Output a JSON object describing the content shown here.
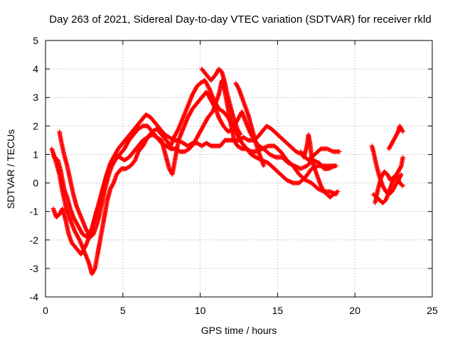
{
  "chart_data": {
    "type": "scatter",
    "title": "Day 263 of 2021, Sidereal Day-to-day VTEC variation (SDTVAR) for receiver rkld",
    "xlabel": "GPS time / hours",
    "ylabel": "SDTVAR / TECUs",
    "xlim": [
      0,
      25
    ],
    "ylim": [
      -4,
      5
    ],
    "xticks": [
      "0",
      "5",
      "10",
      "15",
      "20",
      "25"
    ],
    "yticks": [
      "-4",
      "-3",
      "-2",
      "-1",
      "0",
      "1",
      "2",
      "3",
      "4",
      "5"
    ],
    "grid": true,
    "marker": "+",
    "color": "#ff0000",
    "tracks": [
      [
        [
          0.5,
          1.0
        ],
        [
          0.7,
          0.7
        ],
        [
          0.9,
          0.3
        ],
        [
          1.1,
          -0.3
        ],
        [
          1.3,
          -0.8
        ],
        [
          1.6,
          -1.3
        ],
        [
          1.9,
          -1.7
        ],
        [
          2.2,
          -2.0
        ],
        [
          2.5,
          -2.4
        ],
        [
          2.8,
          -2.8
        ],
        [
          3.0,
          -3.2
        ],
        [
          3.2,
          -3.0
        ],
        [
          3.4,
          -2.4
        ],
        [
          3.6,
          -1.8
        ],
        [
          3.8,
          -1.2
        ],
        [
          4.0,
          -0.6
        ],
        [
          4.2,
          -0.2
        ],
        [
          4.4,
          0.0
        ],
        [
          4.6,
          0.3
        ],
        [
          4.9,
          0.5
        ],
        [
          5.2,
          0.5
        ],
        [
          5.5,
          0.6
        ],
        [
          5.8,
          0.8
        ],
        [
          6.0,
          1.1
        ],
        [
          6.3,
          1.3
        ],
        [
          6.6,
          1.6
        ],
        [
          6.9,
          1.8
        ],
        [
          7.2,
          1.9
        ],
        [
          7.5,
          1.7
        ],
        [
          7.8,
          1.5
        ],
        [
          8.1,
          1.3
        ],
        [
          8.3,
          1.6
        ],
        [
          8.6,
          1.9
        ],
        [
          8.9,
          2.3
        ],
        [
          9.2,
          2.7
        ],
        [
          9.5,
          3.1
        ],
        [
          9.8,
          3.4
        ],
        [
          10.0,
          3.5
        ],
        [
          10.3,
          3.6
        ],
        [
          10.6,
          3.3
        ],
        [
          10.9,
          2.9
        ],
        [
          11.2,
          2.6
        ],
        [
          11.5,
          2.5
        ],
        [
          11.8,
          2.3
        ],
        [
          12.1,
          2.0
        ],
        [
          12.4,
          1.7
        ],
        [
          12.7,
          1.4
        ],
        [
          13.0,
          1.2
        ],
        [
          13.3,
          1.0
        ],
        [
          13.6,
          0.9
        ],
        [
          14.0,
          0.8
        ],
        [
          14.4,
          0.7
        ],
        [
          14.8,
          0.5
        ],
        [
          15.2,
          0.3
        ],
        [
          15.6,
          0.1
        ],
        [
          16.0,
          0.0
        ],
        [
          16.4,
          0.0
        ],
        [
          16.8,
          0.2
        ],
        [
          17.2,
          0.5
        ],
        [
          17.6,
          0.6
        ],
        [
          18.0,
          0.6
        ],
        [
          18.4,
          0.6
        ],
        [
          18.8,
          0.6
        ]
      ],
      [
        [
          0.9,
          1.8
        ],
        [
          1.0,
          1.5
        ],
        [
          1.2,
          1.0
        ],
        [
          1.4,
          0.6
        ],
        [
          1.6,
          0.1
        ],
        [
          1.8,
          -0.4
        ],
        [
          2.0,
          -0.8
        ],
        [
          2.3,
          -1.2
        ],
        [
          2.6,
          -1.6
        ],
        [
          2.9,
          -1.9
        ],
        [
          3.1,
          -1.8
        ],
        [
          3.3,
          -1.5
        ],
        [
          3.5,
          -1.1
        ],
        [
          3.7,
          -0.6
        ],
        [
          3.9,
          -0.1
        ],
        [
          4.1,
          0.3
        ],
        [
          4.3,
          0.6
        ],
        [
          4.5,
          0.8
        ],
        [
          4.8,
          1.0
        ],
        [
          5.1,
          1.2
        ],
        [
          5.4,
          1.5
        ],
        [
          5.7,
          1.7
        ],
        [
          6.0,
          1.9
        ],
        [
          6.3,
          2.0
        ],
        [
          6.6,
          2.0
        ],
        [
          6.9,
          1.8
        ],
        [
          7.2,
          1.6
        ],
        [
          7.5,
          1.4
        ],
        [
          7.8,
          1.3
        ],
        [
          8.1,
          1.2
        ],
        [
          8.4,
          1.2
        ],
        [
          8.7,
          1.1
        ],
        [
          9.0,
          1.1
        ],
        [
          9.3,
          1.2
        ],
        [
          9.6,
          1.4
        ],
        [
          9.9,
          1.7
        ],
        [
          10.2,
          2.0
        ],
        [
          10.5,
          2.3
        ],
        [
          10.8,
          2.5
        ],
        [
          11.0,
          2.8
        ],
        [
          11.2,
          3.1
        ],
        [
          11.4,
          3.6
        ],
        [
          11.6,
          3.2
        ],
        [
          11.8,
          2.6
        ],
        [
          12.0,
          2.0
        ],
        [
          12.2,
          1.5
        ],
        [
          12.4,
          1.3
        ],
        [
          12.7,
          1.2
        ],
        [
          13.0,
          1.2
        ],
        [
          13.3,
          1.1
        ],
        [
          13.6,
          1.1
        ],
        [
          14.0,
          1.2
        ],
        [
          14.4,
          1.3
        ],
        [
          14.8,
          1.3
        ],
        [
          15.2,
          1.1
        ],
        [
          15.6,
          0.8
        ],
        [
          16.0,
          0.6
        ],
        [
          16.4,
          0.3
        ],
        [
          16.8,
          0.1
        ],
        [
          17.2,
          0.0
        ],
        [
          17.6,
          -0.2
        ],
        [
          18.0,
          -0.3
        ],
        [
          18.4,
          -0.3
        ],
        [
          18.8,
          -0.4
        ]
      ],
      [
        [
          0.5,
          -0.9
        ],
        [
          0.7,
          -1.2
        ],
        [
          0.9,
          -1.1
        ],
        [
          1.1,
          -0.9
        ],
        [
          1.3,
          -1.3
        ],
        [
          1.5,
          -1.8
        ],
        [
          1.7,
          -2.1
        ],
        [
          2.0,
          -2.3
        ],
        [
          2.3,
          -2.5
        ],
        [
          2.6,
          -2.2
        ],
        [
          2.9,
          -1.8
        ],
        [
          3.2,
          -1.2
        ],
        [
          3.5,
          -0.6
        ],
        [
          3.8,
          0.0
        ],
        [
          4.1,
          0.5
        ],
        [
          4.4,
          0.9
        ],
        [
          4.7,
          1.2
        ],
        [
          5.0,
          1.4
        ],
        [
          5.3,
          1.6
        ],
        [
          5.6,
          1.8
        ],
        [
          5.9,
          2.0
        ],
        [
          6.2,
          2.2
        ],
        [
          6.5,
          2.4
        ],
        [
          6.8,
          2.3
        ],
        [
          7.1,
          2.1
        ],
        [
          7.4,
          1.9
        ],
        [
          7.7,
          1.7
        ],
        [
          8.0,
          1.6
        ],
        [
          8.3,
          1.5
        ],
        [
          8.6,
          1.5
        ],
        [
          8.9,
          1.4
        ],
        [
          9.2,
          1.3
        ],
        [
          9.5,
          1.4
        ],
        [
          9.8,
          1.4
        ],
        [
          10.1,
          1.3
        ],
        [
          10.4,
          1.4
        ],
        [
          10.7,
          1.3
        ],
        [
          11.0,
          1.3
        ],
        [
          11.3,
          1.3
        ],
        [
          11.6,
          1.5
        ],
        [
          11.9,
          1.5
        ],
        [
          12.2,
          1.5
        ],
        [
          12.5,
          1.5
        ],
        [
          12.8,
          1.6
        ],
        [
          13.1,
          1.5
        ],
        [
          13.4,
          1.5
        ],
        [
          13.7,
          1.6
        ],
        [
          14.0,
          1.8
        ],
        [
          14.3,
          2.0
        ],
        [
          14.6,
          1.9
        ],
        [
          15.0,
          1.7
        ],
        [
          15.4,
          1.5
        ],
        [
          15.8,
          1.3
        ],
        [
          16.2,
          1.1
        ],
        [
          16.6,
          1.0
        ],
        [
          17.0,
          0.8
        ],
        [
          17.4,
          1.0
        ],
        [
          17.8,
          1.2
        ],
        [
          18.2,
          1.2
        ],
        [
          18.6,
          1.1
        ],
        [
          19.0,
          1.1
        ]
      ],
      [
        [
          0.4,
          1.2
        ],
        [
          0.6,
          0.9
        ],
        [
          0.8,
          0.8
        ],
        [
          1.0,
          0.4
        ],
        [
          1.2,
          -0.2
        ],
        [
          1.4,
          -0.5
        ],
        [
          1.6,
          -0.9
        ],
        [
          1.8,
          -1.2
        ],
        [
          2.1,
          -1.5
        ],
        [
          2.4,
          -1.8
        ],
        [
          2.7,
          -1.9
        ],
        [
          3.0,
          -1.6
        ],
        [
          3.3,
          -1.0
        ],
        [
          3.6,
          -0.5
        ],
        [
          3.9,
          0.2
        ],
        [
          4.2,
          0.7
        ],
        [
          4.5,
          1.0
        ],
        [
          4.8,
          0.9
        ],
        [
          5.1,
          0.8
        ],
        [
          5.4,
          0.9
        ],
        [
          5.7,
          1.1
        ],
        [
          6.0,
          1.3
        ],
        [
          6.3,
          1.5
        ],
        [
          6.6,
          1.6
        ],
        [
          6.9,
          1.7
        ],
        [
          7.2,
          1.6
        ],
        [
          7.5,
          1.5
        ],
        [
          7.8,
          0.9
        ],
        [
          8.0,
          0.5
        ],
        [
          8.2,
          0.3
        ],
        [
          8.4,
          0.9
        ],
        [
          8.6,
          1.5
        ],
        [
          8.9,
          1.9
        ],
        [
          9.2,
          2.3
        ],
        [
          9.5,
          2.6
        ],
        [
          9.8,
          2.8
        ],
        [
          10.1,
          3.0
        ],
        [
          10.4,
          3.2
        ],
        [
          10.7,
          2.9
        ],
        [
          11.0,
          2.6
        ],
        [
          11.2,
          2.3
        ],
        [
          11.5,
          2.0
        ],
        [
          11.8,
          1.8
        ],
        [
          12.1,
          1.9
        ],
        [
          12.4,
          2.2
        ],
        [
          12.7,
          2.5
        ],
        [
          12.9,
          2.2
        ],
        [
          13.2,
          1.8
        ],
        [
          13.5,
          1.5
        ],
        [
          13.8,
          1.3
        ],
        [
          14.1,
          1.2
        ],
        [
          14.5,
          1.0
        ],
        [
          14.9,
          0.9
        ],
        [
          15.3,
          0.9
        ],
        [
          15.7,
          0.7
        ],
        [
          16.1,
          0.6
        ],
        [
          16.5,
          0.5
        ],
        [
          16.9,
          0.6
        ],
        [
          17.3,
          0.8
        ],
        [
          17.7,
          0.7
        ],
        [
          18.0,
          0.5
        ],
        [
          18.3,
          0.5
        ],
        [
          18.7,
          0.6
        ]
      ],
      [
        [
          10.1,
          4.0
        ],
        [
          10.4,
          3.8
        ],
        [
          10.7,
          3.6
        ],
        [
          11.0,
          3.8
        ],
        [
          11.2,
          4.0
        ],
        [
          11.4,
          3.9
        ],
        [
          11.6,
          3.5
        ],
        [
          11.8,
          3.0
        ],
        [
          12.0,
          2.6
        ],
        [
          12.2,
          2.2
        ],
        [
          12.4,
          1.9
        ],
        [
          12.6,
          1.7
        ]
      ],
      [
        [
          12.3,
          3.5
        ],
        [
          12.5,
          3.3
        ],
        [
          12.7,
          3.0
        ],
        [
          12.9,
          2.7
        ],
        [
          13.1,
          2.4
        ],
        [
          13.3,
          2.0
        ],
        [
          13.5,
          1.6
        ],
        [
          13.7,
          1.2
        ],
        [
          13.9,
          0.9
        ],
        [
          14.1,
          0.6
        ]
      ],
      [
        [
          16.5,
          1.1
        ],
        [
          16.7,
          0.9
        ],
        [
          16.9,
          1.3
        ],
        [
          17.0,
          1.7
        ],
        [
          17.1,
          1.4
        ],
        [
          17.2,
          0.9
        ],
        [
          17.4,
          0.5
        ],
        [
          17.6,
          0.2
        ],
        [
          17.8,
          -0.1
        ],
        [
          18.0,
          -0.3
        ],
        [
          18.2,
          -0.4
        ],
        [
          18.4,
          -0.5
        ],
        [
          18.6,
          -0.4
        ],
        [
          18.9,
          -0.3
        ]
      ],
      [
        [
          21.1,
          1.3
        ],
        [
          21.2,
          1.1
        ],
        [
          21.4,
          0.6
        ],
        [
          21.6,
          0.2
        ],
        [
          21.8,
          -0.1
        ],
        [
          22.0,
          -0.3
        ],
        [
          22.2,
          -0.4
        ],
        [
          22.4,
          -0.3
        ],
        [
          22.6,
          -0.1
        ],
        [
          22.8,
          0.1
        ],
        [
          23.0,
          0.3
        ]
      ],
      [
        [
          21.2,
          -0.4
        ],
        [
          21.4,
          -0.5
        ],
        [
          21.6,
          -0.6
        ],
        [
          21.8,
          -0.7
        ],
        [
          22.0,
          -0.6
        ],
        [
          22.2,
          -0.3
        ],
        [
          22.4,
          0.0
        ],
        [
          22.6,
          0.2
        ],
        [
          22.8,
          0.4
        ],
        [
          23.0,
          0.6
        ],
        [
          23.1,
          0.9
        ]
      ],
      [
        [
          21.3,
          -0.7
        ],
        [
          21.5,
          -0.2
        ],
        [
          21.7,
          0.2
        ],
        [
          21.9,
          0.4
        ],
        [
          22.1,
          0.3
        ],
        [
          22.3,
          0.1
        ],
        [
          22.5,
          0.2
        ],
        [
          22.7,
          0.3
        ],
        [
          22.9,
          0.0
        ],
        [
          23.1,
          -0.1
        ]
      ],
      [
        [
          22.2,
          1.2
        ],
        [
          22.4,
          1.4
        ],
        [
          22.6,
          1.6
        ],
        [
          22.8,
          1.8
        ],
        [
          22.9,
          2.0
        ],
        [
          23.0,
          1.9
        ],
        [
          23.1,
          1.8
        ]
      ]
    ]
  }
}
